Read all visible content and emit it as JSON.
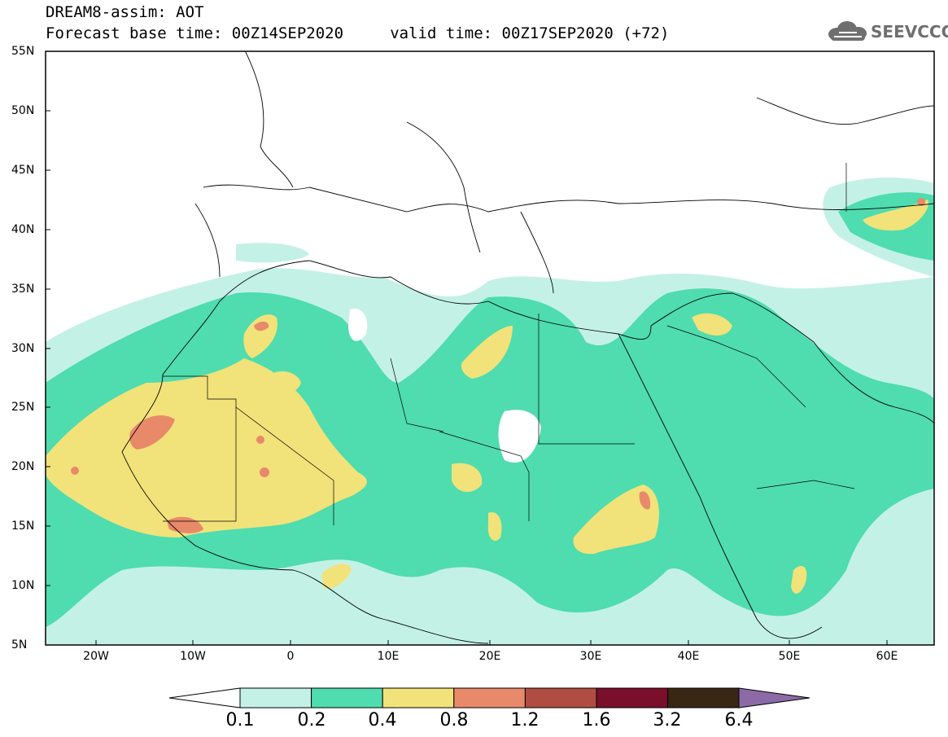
{
  "header": {
    "line1": "DREAM8-assim: AOT",
    "line2": "Forecast base time: 00Z14SEP2020     valid time: 00Z17SEP2020 (+72)"
  },
  "logo": {
    "text": "SEEVCCC",
    "icon": "cloud-icon"
  },
  "axes": {
    "lat_ticks": [
      "55N",
      "50N",
      "45N",
      "40N",
      "35N",
      "30N",
      "25N",
      "20N",
      "15N",
      "10N",
      "5N"
    ],
    "lon_ticks": [
      "20W",
      "10W",
      "0",
      "10E",
      "20E",
      "30E",
      "40E",
      "50E",
      "60E"
    ]
  },
  "colorbar": {
    "labels": [
      "0.1",
      "0.2",
      "0.4",
      "0.8",
      "1.2",
      "1.6",
      "3.2",
      "6.4"
    ],
    "colors": [
      "#c4f1e6",
      "#4fdcae",
      "#f2e27a",
      "#e88a6a",
      "#b04d43",
      "#7a0f2a",
      "#3a2614",
      "#8b6aa6"
    ]
  }
}
